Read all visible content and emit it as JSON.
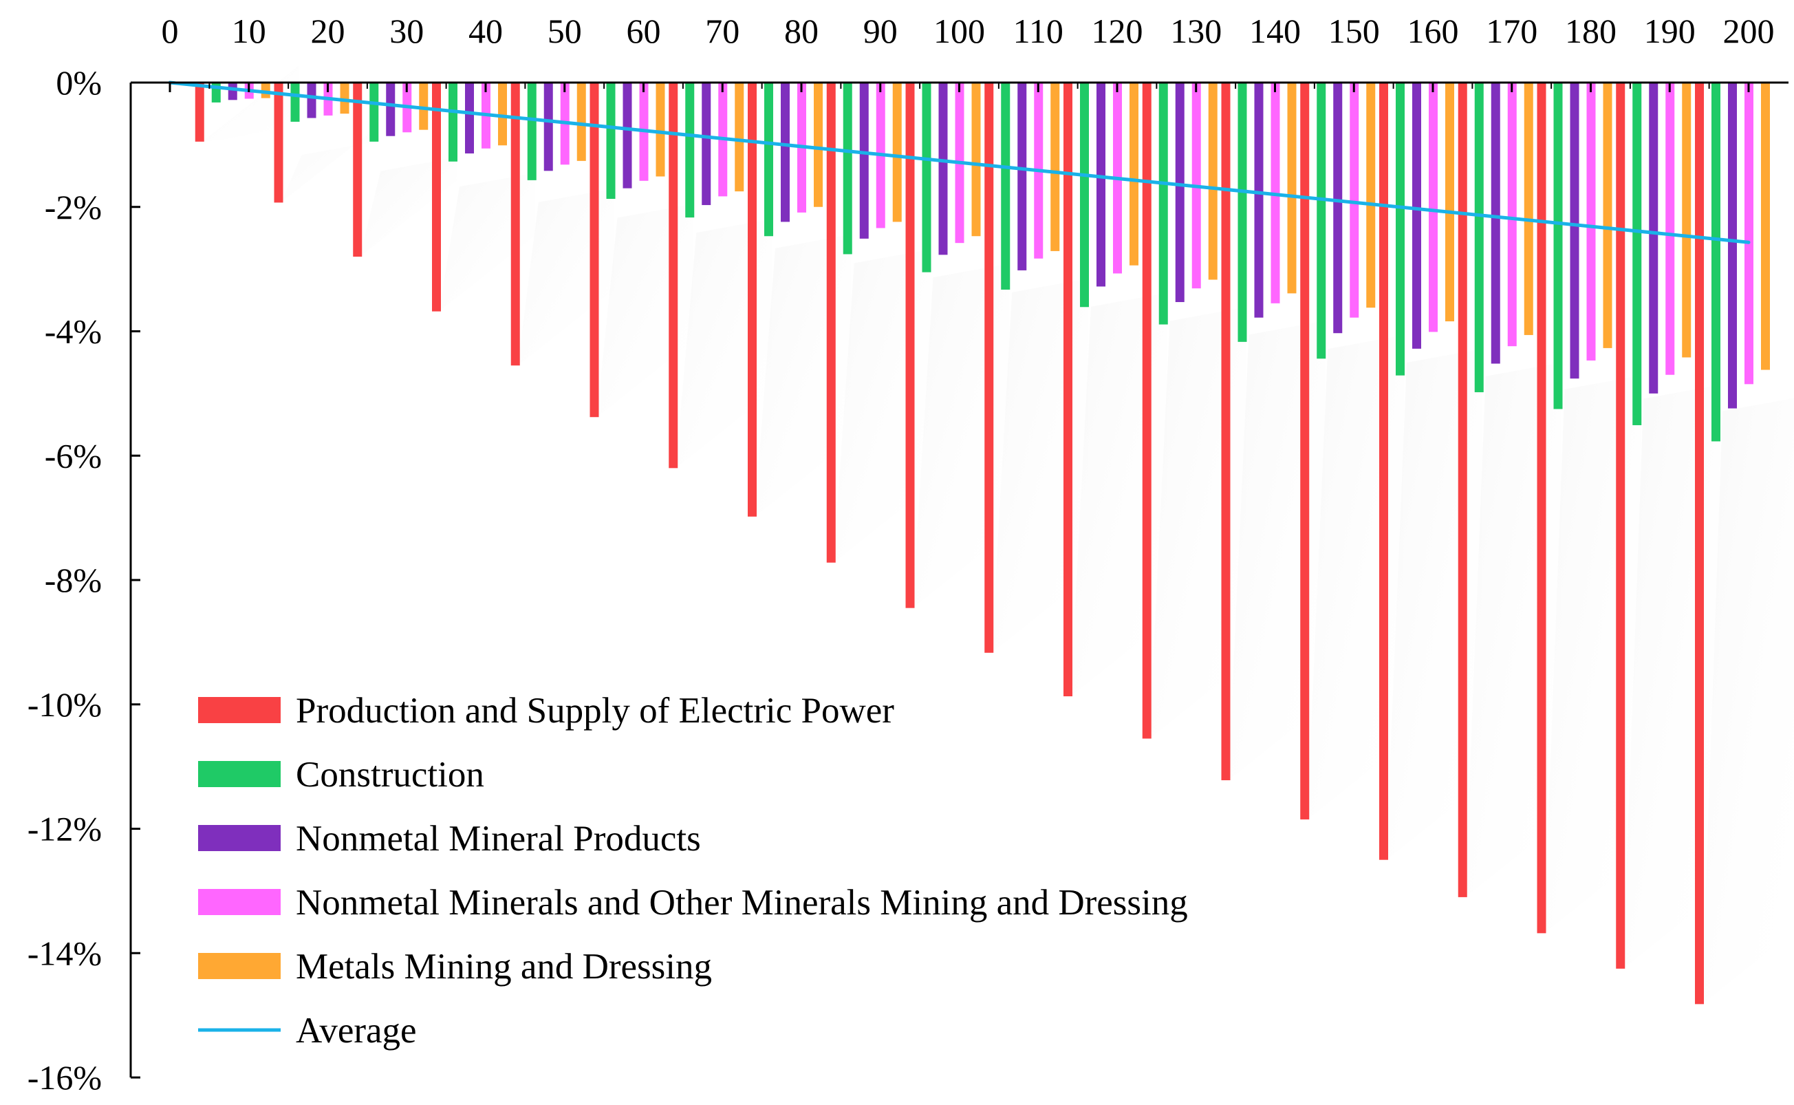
{
  "chart_data": {
    "type": "bar",
    "title": "",
    "xlabel": "",
    "ylabel": "",
    "x_axis_position": "top",
    "xlim": [
      0,
      200
    ],
    "ylim": [
      -16,
      0
    ],
    "x_ticks": [
      0,
      10,
      20,
      30,
      40,
      50,
      60,
      70,
      80,
      90,
      100,
      110,
      120,
      130,
      140,
      150,
      160,
      170,
      180,
      190,
      200
    ],
    "x_tick_labels": [
      "0",
      "10",
      "20",
      "30",
      "40",
      "50",
      "60",
      "70",
      "80",
      "90",
      "100",
      "110",
      "120",
      "130",
      "140",
      "150",
      "160",
      "170",
      "180",
      "190",
      "200"
    ],
    "y_ticks": [
      0,
      -2,
      -4,
      -6,
      -8,
      -10,
      -12,
      -14,
      -16
    ],
    "y_tick_labels": [
      "0%",
      "-2%",
      "-4%",
      "-6%",
      "-8%",
      "-10%",
      "-12%",
      "-14%",
      "-16%"
    ],
    "categories": [
      10,
      20,
      30,
      40,
      50,
      60,
      70,
      80,
      90,
      100,
      110,
      120,
      130,
      140,
      150,
      160,
      170,
      180,
      190,
      200
    ],
    "series": [
      {
        "name": "Production and Supply of Electric Power",
        "color": "#f94144",
        "values": [
          -0.95,
          -1.93,
          -2.8,
          -3.68,
          -4.55,
          -5.38,
          -6.2,
          -6.98,
          -7.72,
          -8.45,
          -9.17,
          -9.87,
          -10.55,
          -11.22,
          -11.85,
          -12.5,
          -13.1,
          -13.68,
          -14.25,
          -14.82
        ]
      },
      {
        "name": "Construction",
        "color": "#1fca66",
        "values": [
          -0.32,
          -0.63,
          -0.95,
          -1.27,
          -1.57,
          -1.87,
          -2.17,
          -2.47,
          -2.76,
          -3.05,
          -3.33,
          -3.61,
          -3.89,
          -4.17,
          -4.44,
          -4.71,
          -4.98,
          -5.25,
          -5.51,
          -5.77
        ]
      },
      {
        "name": "Nonmetal Mineral Products",
        "color": "#7f2fbd",
        "values": [
          -0.28,
          -0.57,
          -0.86,
          -1.14,
          -1.42,
          -1.7,
          -1.97,
          -2.24,
          -2.51,
          -2.77,
          -3.02,
          -3.28,
          -3.53,
          -3.78,
          -4.03,
          -4.28,
          -4.52,
          -4.76,
          -5.0,
          -5.24
        ]
      },
      {
        "name": "Nonmetal Minerals and Other Minerals Mining and Dressing",
        "color": "#ff66ff",
        "values": [
          -0.26,
          -0.53,
          -0.8,
          -1.06,
          -1.32,
          -1.58,
          -1.83,
          -2.09,
          -2.34,
          -2.58,
          -2.83,
          -3.07,
          -3.31,
          -3.55,
          -3.78,
          -4.01,
          -4.24,
          -4.47,
          -4.7,
          -4.85
        ]
      },
      {
        "name": "Metals Mining and Dressing",
        "color": "#ffa833",
        "values": [
          -0.25,
          -0.5,
          -0.76,
          -1.01,
          -1.26,
          -1.51,
          -1.75,
          -2.0,
          -2.24,
          -2.47,
          -2.71,
          -2.94,
          -3.17,
          -3.39,
          -3.62,
          -3.84,
          -4.06,
          -4.27,
          -4.42,
          -4.62
        ]
      }
    ],
    "average_line": {
      "name": "Average",
      "color": "#1ab2e8",
      "x": [
        0,
        200
      ],
      "y": [
        0,
        -2.57
      ]
    },
    "legend": {
      "position": "bottom-left",
      "entries": [
        {
          "label": "Production and Supply of Electric Power",
          "kind": "bar",
          "color": "#f94144"
        },
        {
          "label": "Construction",
          "kind": "bar",
          "color": "#1fca66"
        },
        {
          "label": "Nonmetal Mineral Products",
          "kind": "bar",
          "color": "#7f2fbd"
        },
        {
          "label": "Nonmetal Minerals and Other Minerals Mining and Dressing",
          "kind": "bar",
          "color": "#ff66ff"
        },
        {
          "label": "Metals Mining and Dressing",
          "kind": "bar",
          "color": "#ffa833"
        },
        {
          "label": "Average",
          "kind": "line",
          "color": "#1ab2e8"
        }
      ]
    },
    "grid": false
  }
}
